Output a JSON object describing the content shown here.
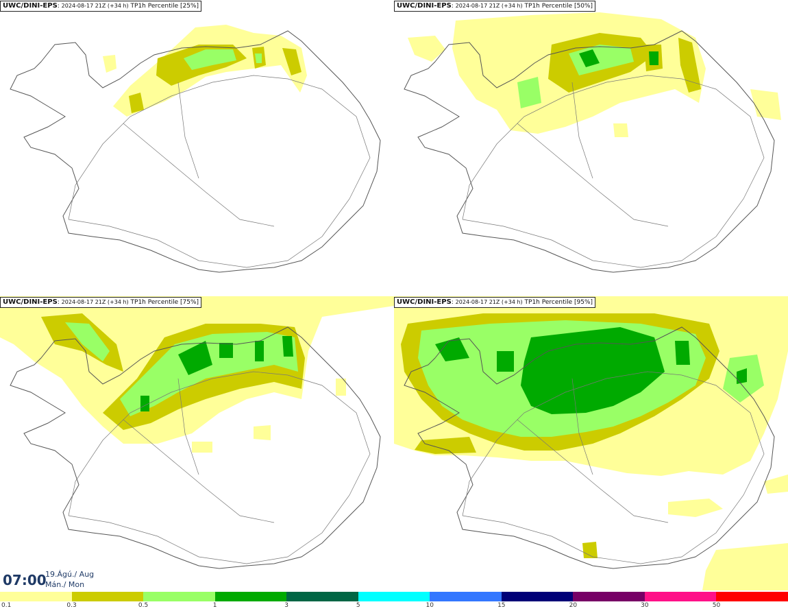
{
  "model": "UWC/DINI-EPS",
  "run": "2024-08-17 21Z (+34 h)",
  "panels": [
    {
      "variable": "TP1h Percentile",
      "percentile": "[25%]"
    },
    {
      "variable": "TP1h Percentile",
      "percentile": "[50%]"
    },
    {
      "variable": "TP1h Percentile",
      "percentile": "[75%]"
    },
    {
      "variable": "TP1h Percentile",
      "percentile": "[95%]"
    }
  ],
  "timestamp": {
    "time": "07:00",
    "date_line1": "19.Ágú./ Aug",
    "date_line2": "Mán./ Mon"
  },
  "legend": {
    "ticks": [
      "0.1",
      "0.3",
      "0.5",
      "1",
      "3",
      "5",
      "10",
      "15",
      "20",
      "30",
      "50"
    ],
    "colors": [
      "#ffff99",
      "#cccc00",
      "#99ff66",
      "#00aa00",
      "#006644",
      "#00ffff",
      "#3377ff",
      "#000077",
      "#770066",
      "#ff1188",
      "#ff0000"
    ]
  },
  "map_colors": {
    "land": "#ffffff",
    "coast": "#555555",
    "roads": "#777777"
  }
}
